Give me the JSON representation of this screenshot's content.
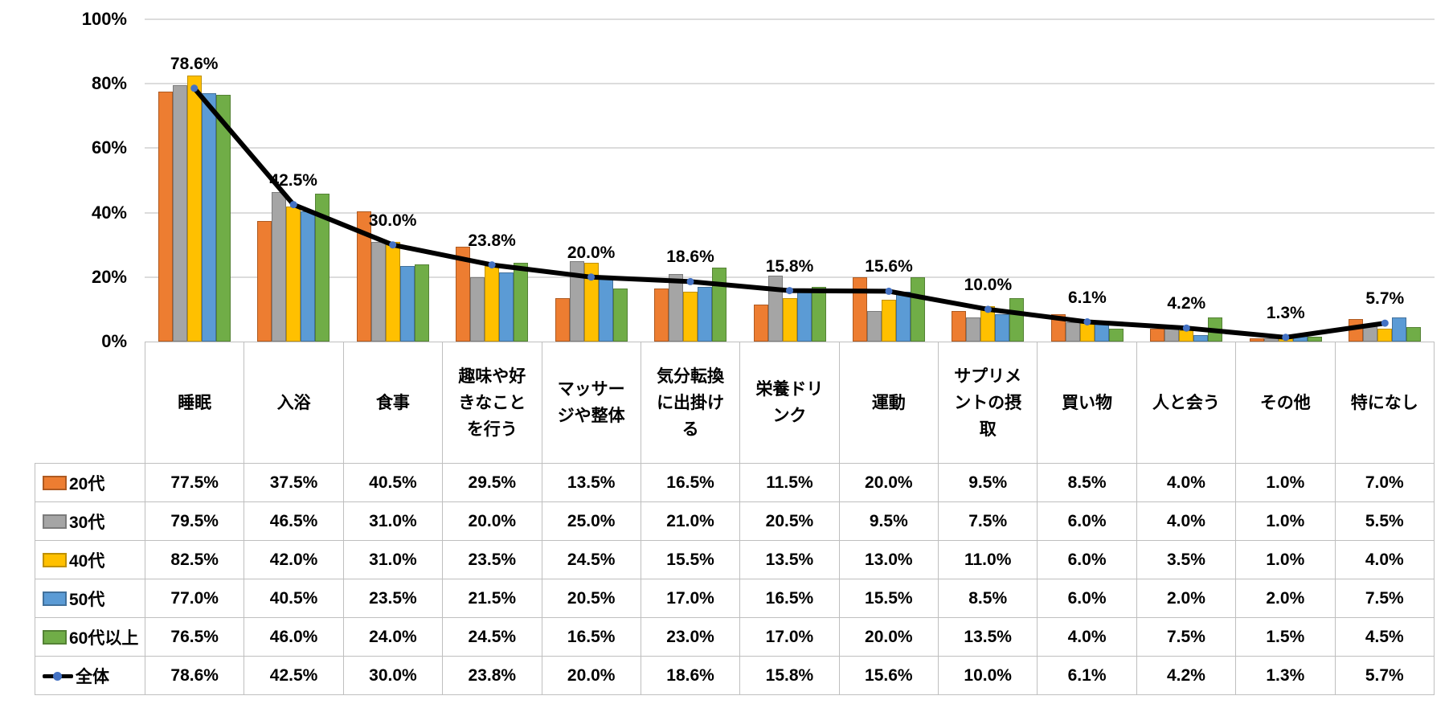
{
  "chart_data": {
    "type": "bar",
    "combo": [
      "bar",
      "line"
    ],
    "title": "",
    "xlabel": "",
    "ylabel": "",
    "categories": [
      "睡眠",
      "入浴",
      "食事",
      "趣味や好きなことを行う",
      "マッサージや整体",
      "気分転換に出掛ける",
      "栄養ドリンク",
      "運動",
      "サプリメントの摂取",
      "買い物",
      "人と会う",
      "その他",
      "特になし"
    ],
    "series": [
      {
        "name": "20代",
        "type": "bar",
        "color": "#ED7D31",
        "border_color": "#AE5A21",
        "values": [
          77.5,
          37.5,
          40.5,
          29.5,
          13.5,
          16.5,
          11.5,
          20.0,
          9.5,
          8.5,
          4.0,
          1.0,
          7.0
        ]
      },
      {
        "name": "30代",
        "type": "bar",
        "color": "#A5A5A5",
        "border_color": "#7B7B7B",
        "values": [
          79.5,
          46.5,
          31.0,
          20.0,
          25.0,
          21.0,
          20.5,
          9.5,
          7.5,
          6.0,
          4.0,
          1.0,
          5.5
        ]
      },
      {
        "name": "40代",
        "type": "bar",
        "color": "#FFC000",
        "border_color": "#BF9000",
        "values": [
          82.5,
          42.0,
          31.0,
          23.5,
          24.5,
          15.5,
          13.5,
          13.0,
          11.0,
          6.0,
          3.5,
          1.0,
          4.0
        ]
      },
      {
        "name": "50代",
        "type": "bar",
        "color": "#5B9BD5",
        "border_color": "#41719C",
        "values": [
          77.0,
          40.5,
          23.5,
          21.5,
          20.5,
          17.0,
          16.5,
          15.5,
          8.5,
          6.0,
          2.0,
          2.0,
          7.5
        ]
      },
      {
        "name": "60代以上",
        "type": "bar",
        "color": "#70AD47",
        "border_color": "#548235",
        "values": [
          76.5,
          46.0,
          24.0,
          24.5,
          16.5,
          23.0,
          17.0,
          20.0,
          13.5,
          4.0,
          7.5,
          1.5,
          4.5
        ]
      },
      {
        "name": "全体",
        "type": "line",
        "color": "#000000",
        "marker_color": "#4472C4",
        "values": [
          78.6,
          42.5,
          30.0,
          23.8,
          20.0,
          18.6,
          15.8,
          15.6,
          10.0,
          6.1,
          4.2,
          1.3,
          5.7
        ],
        "data_labels": [
          "78.6%",
          "42.5%",
          "30.0%",
          "23.8%",
          "20.0%",
          "18.6%",
          "15.8%",
          "15.6%",
          "10.0%",
          "6.1%",
          "4.2%",
          "1.3%",
          "5.7%"
        ]
      }
    ],
    "y_axis": {
      "min": 0,
      "max": 100,
      "step": 20,
      "ticks": [
        "0%",
        "20%",
        "40%",
        "60%",
        "80%",
        "100%"
      ],
      "grid": true,
      "grid_color": "#dcdcdc"
    },
    "legend_position": "data-table-left",
    "value_format": "0.0%"
  }
}
